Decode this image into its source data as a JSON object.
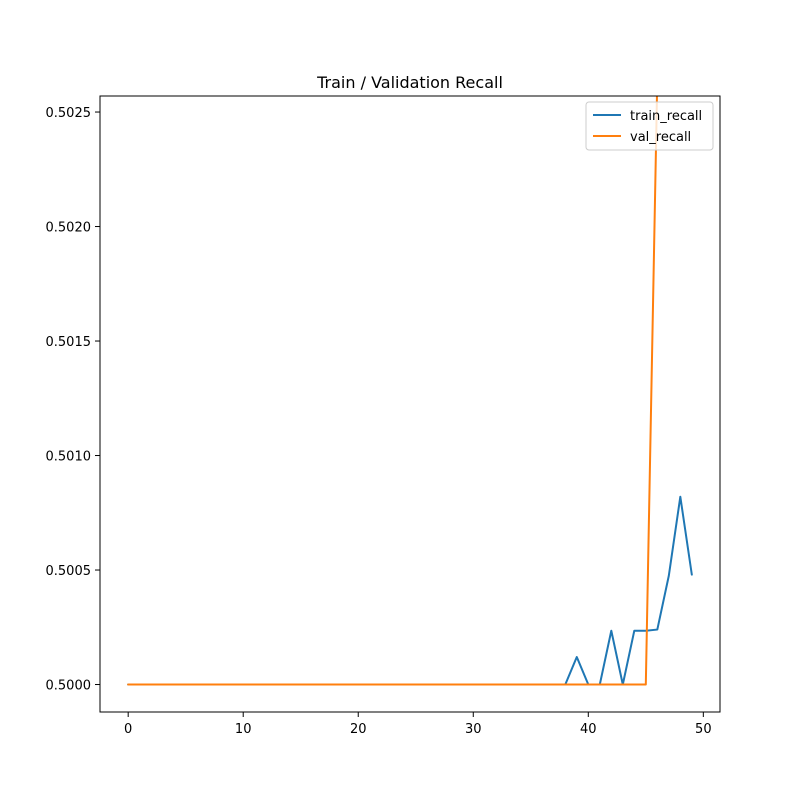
{
  "chart_data": {
    "type": "line",
    "title": "Train / Validation Recall",
    "xlabel": "",
    "ylabel": "",
    "xlim": [
      -2.45,
      51.45
    ],
    "ylim": [
      0.49988,
      0.50257
    ],
    "xticks": [
      0,
      10,
      20,
      30,
      40,
      50
    ],
    "xtick_labels": [
      "0",
      "10",
      "20",
      "30",
      "40",
      "50"
    ],
    "yticks": [
      0.5,
      0.5005,
      0.501,
      0.5015,
      0.502,
      0.5025
    ],
    "ytick_labels": [
      "0.5000",
      "0.5005",
      "0.5010",
      "0.5015",
      "0.5020",
      "0.5025"
    ],
    "grid": false,
    "legend_position": "upper-right",
    "series": [
      {
        "name": "train_recall",
        "color": "#1f77b4",
        "x": [
          0,
          1,
          2,
          3,
          4,
          5,
          6,
          7,
          8,
          9,
          10,
          11,
          12,
          13,
          14,
          15,
          16,
          17,
          18,
          19,
          20,
          21,
          22,
          23,
          24,
          25,
          26,
          27,
          28,
          29,
          30,
          31,
          32,
          33,
          34,
          35,
          36,
          37,
          38,
          39,
          40,
          41,
          42,
          43,
          44,
          45,
          46,
          47,
          48,
          49
        ],
        "values": [
          0.5,
          0.5,
          0.5,
          0.5,
          0.5,
          0.5,
          0.5,
          0.5,
          0.5,
          0.5,
          0.5,
          0.5,
          0.5,
          0.5,
          0.5,
          0.5,
          0.5,
          0.5,
          0.5,
          0.5,
          0.5,
          0.5,
          0.5,
          0.5,
          0.5,
          0.5,
          0.5,
          0.5,
          0.5,
          0.5,
          0.5,
          0.5,
          0.5,
          0.5,
          0.5,
          0.5,
          0.5,
          0.5,
          0.5,
          0.50012,
          0.5,
          0.5,
          0.500235,
          0.5,
          0.500235,
          0.500235,
          0.50024,
          0.500475,
          0.50082,
          0.50048
        ]
      },
      {
        "name": "val_recall",
        "color": "#ff7f0e",
        "x": [
          0,
          1,
          2,
          3,
          4,
          5,
          6,
          7,
          8,
          9,
          10,
          11,
          12,
          13,
          14,
          15,
          16,
          17,
          18,
          19,
          20,
          21,
          22,
          23,
          24,
          25,
          26,
          27,
          28,
          29,
          30,
          31,
          32,
          33,
          34,
          35,
          36,
          37,
          38,
          39,
          40,
          41,
          42,
          43,
          44,
          45,
          46,
          47,
          48,
          49
        ],
        "values": [
          0.5,
          0.5,
          0.5,
          0.5,
          0.5,
          0.5,
          0.5,
          0.5,
          0.5,
          0.5,
          0.5,
          0.5,
          0.5,
          0.5,
          0.5,
          0.5,
          0.5,
          0.5,
          0.5,
          0.5,
          0.5,
          0.5,
          0.5,
          0.5,
          0.5,
          0.5,
          0.5,
          0.5,
          0.5,
          0.5,
          0.5,
          0.5,
          0.5,
          0.5,
          0.5,
          0.5,
          0.5,
          0.5,
          0.5,
          0.5,
          0.5,
          0.5,
          0.5,
          0.5,
          0.5,
          0.5,
          0.50265,
          0.50265,
          0.50265,
          0.50265
        ]
      }
    ]
  }
}
